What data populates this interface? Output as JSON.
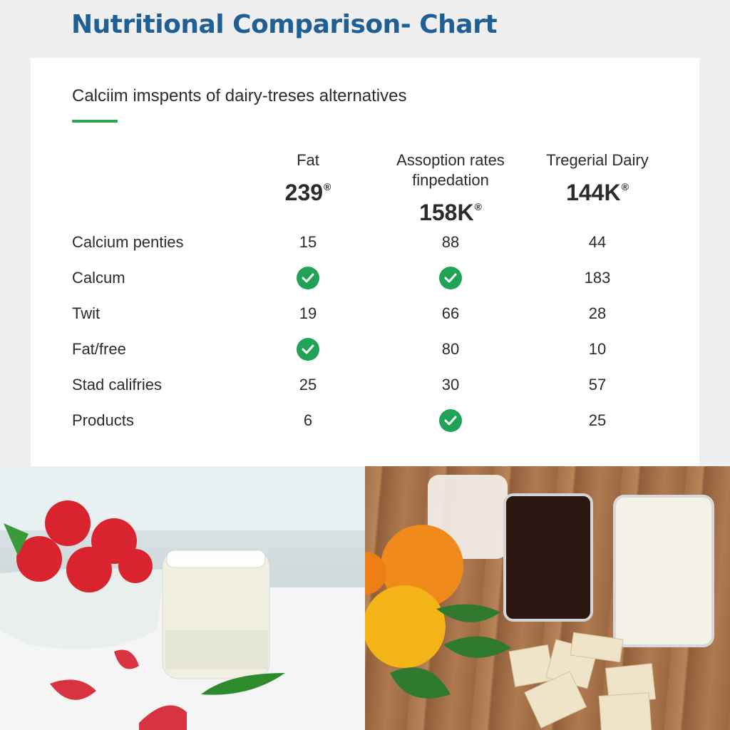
{
  "header": {
    "title": "Nutritional Comparison- Chart"
  },
  "card": {
    "subtitle": "Calciim imspents of dairy-treses alternatives",
    "accent_color": "#2fa35a"
  },
  "table": {
    "columns": [
      {
        "label_line1": "",
        "label_line2": "Fat",
        "value": "239",
        "mark": "®"
      },
      {
        "label_line1": "Assoption rates",
        "label_line2": "finpedation",
        "value": "158K",
        "mark": "®"
      },
      {
        "label_line1": "",
        "label_line2": "Tregerial Dairy",
        "value": "144K",
        "mark": "®"
      }
    ],
    "rows": [
      {
        "label": "Calcium penties",
        "cells": [
          "15",
          "88",
          "44"
        ]
      },
      {
        "label": "Calcum",
        "cells": [
          "check",
          "check",
          "183"
        ]
      },
      {
        "label": "Twit",
        "cells": [
          "19",
          "66",
          "28"
        ]
      },
      {
        "label": "Fat/free",
        "cells": [
          "check",
          "80",
          "10"
        ]
      },
      {
        "label": "Stad califries",
        "cells": [
          "25",
          "30",
          "57"
        ]
      },
      {
        "label": "Products",
        "cells": [
          "6",
          "check",
          "25"
        ]
      }
    ],
    "check_color": "#20a356"
  },
  "photos": {
    "left": {
      "description": "strawberries in white bowl beside jar of milk on marble counter"
    },
    "right": {
      "description": "oranges, lemon, leaves, glasses of milk and dark drink, crackers on wooden table"
    }
  }
}
